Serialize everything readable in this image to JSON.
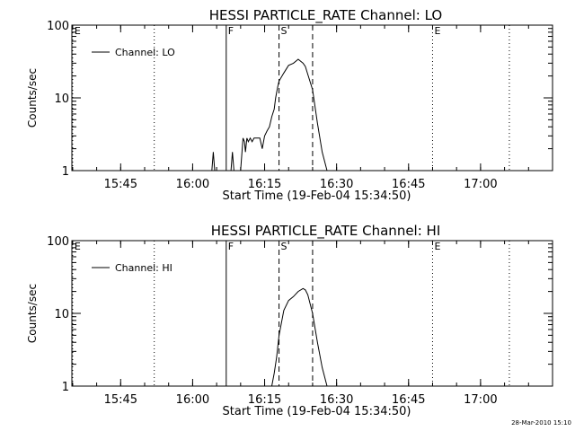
{
  "footer_timestamp": "28-Mar-2010 15:10",
  "chart_data": [
    {
      "type": "line",
      "title": "HESSI PARTICLE_RATE Channel: LO",
      "xlabel": "Start Time (19-Feb-04 15:34:50)",
      "ylabel": "Counts/sec",
      "yscale": "log",
      "ylim": [
        1,
        100
      ],
      "xlim_minutes": [
        "15:34:50",
        "17:15:00"
      ],
      "x_ticks": [
        "15:45",
        "16:00",
        "16:15",
        "16:30",
        "16:45",
        "17:00"
      ],
      "y_ticks": [
        "1",
        "10",
        "100"
      ],
      "legend": {
        "label": "Channel: LO",
        "placement": "top-left"
      },
      "markers": [
        {
          "label": "E",
          "time": "15:35",
          "style": "dotted"
        },
        {
          "label": "",
          "time": "15:52",
          "style": "dotted"
        },
        {
          "label": "F",
          "time": "16:07",
          "style": "solid"
        },
        {
          "label": "S",
          "time": "16:18",
          "style": "dashed"
        },
        {
          "label": "",
          "time": "16:25",
          "style": "dashed"
        },
        {
          "label": "E",
          "time": "16:50",
          "style": "dotted"
        },
        {
          "label": "",
          "time": "17:06",
          "style": "dotted"
        }
      ],
      "series": [
        {
          "x": [
            "16:04",
            "16:04.3",
            "16:04.6",
            "16:08",
            "16:08.3",
            "16:08.6",
            "16:10",
            "16:10.5",
            "16:10.8",
            "16:11",
            "16:11.3",
            "16:11.6",
            "16:12",
            "16:12.4",
            "16:12.8",
            "16:13.5",
            "16:14",
            "16:14.5",
            "16:15",
            "16:15.5",
            "16:16",
            "16:16.5",
            "16:17",
            "16:17.3",
            "16:17.7",
            "16:18",
            "16:19",
            "16:20",
            "16:21",
            "16:22",
            "16:23",
            "16:23.5",
            "16:24",
            "16:25",
            "16:26",
            "16:27",
            "16:28"
          ],
          "y": [
            1,
            1.8,
            1,
            1,
            1.8,
            1,
            1,
            2.8,
            2.5,
            1.8,
            2.8,
            2.5,
            2.8,
            2.5,
            2.8,
            2.8,
            2.8,
            2,
            3,
            3.5,
            4,
            5.5,
            7,
            10,
            14,
            17,
            22,
            28,
            30,
            34,
            30,
            27,
            21,
            13,
            4.5,
            1.8,
            1
          ]
        }
      ]
    },
    {
      "type": "line",
      "title": "HESSI PARTICLE_RATE Channel: HI",
      "xlabel": "Start Time (19-Feb-04 15:34:50)",
      "ylabel": "Counts/sec",
      "yscale": "log",
      "ylim": [
        1,
        100
      ],
      "xlim_minutes": [
        "15:34:50",
        "17:15:00"
      ],
      "x_ticks": [
        "15:45",
        "16:00",
        "16:15",
        "16:30",
        "16:45",
        "17:00"
      ],
      "y_ticks": [
        "1",
        "10",
        "100"
      ],
      "legend": {
        "label": "Channel: HI",
        "placement": "top-left"
      },
      "markers": [
        {
          "label": "E",
          "time": "15:35",
          "style": "dotted"
        },
        {
          "label": "",
          "time": "15:52",
          "style": "dotted"
        },
        {
          "label": "F",
          "time": "16:07",
          "style": "solid"
        },
        {
          "label": "S",
          "time": "16:18",
          "style": "dashed"
        },
        {
          "label": "",
          "time": "16:25",
          "style": "dashed"
        },
        {
          "label": "E",
          "time": "16:50",
          "style": "dotted"
        },
        {
          "label": "",
          "time": "17:06",
          "style": "dotted"
        }
      ],
      "series": [
        {
          "x": [
            "16:16.5",
            "16:17",
            "16:17.5",
            "16:18",
            "16:19",
            "16:20",
            "16:21",
            "16:22",
            "16:23",
            "16:23.5",
            "16:24",
            "16:25",
            "16:26",
            "16:27",
            "16:28"
          ],
          "y": [
            1,
            1.5,
            2.5,
            5,
            11,
            15,
            17,
            20,
            22,
            21,
            18,
            10,
            4,
            1.8,
            1
          ]
        }
      ]
    }
  ]
}
